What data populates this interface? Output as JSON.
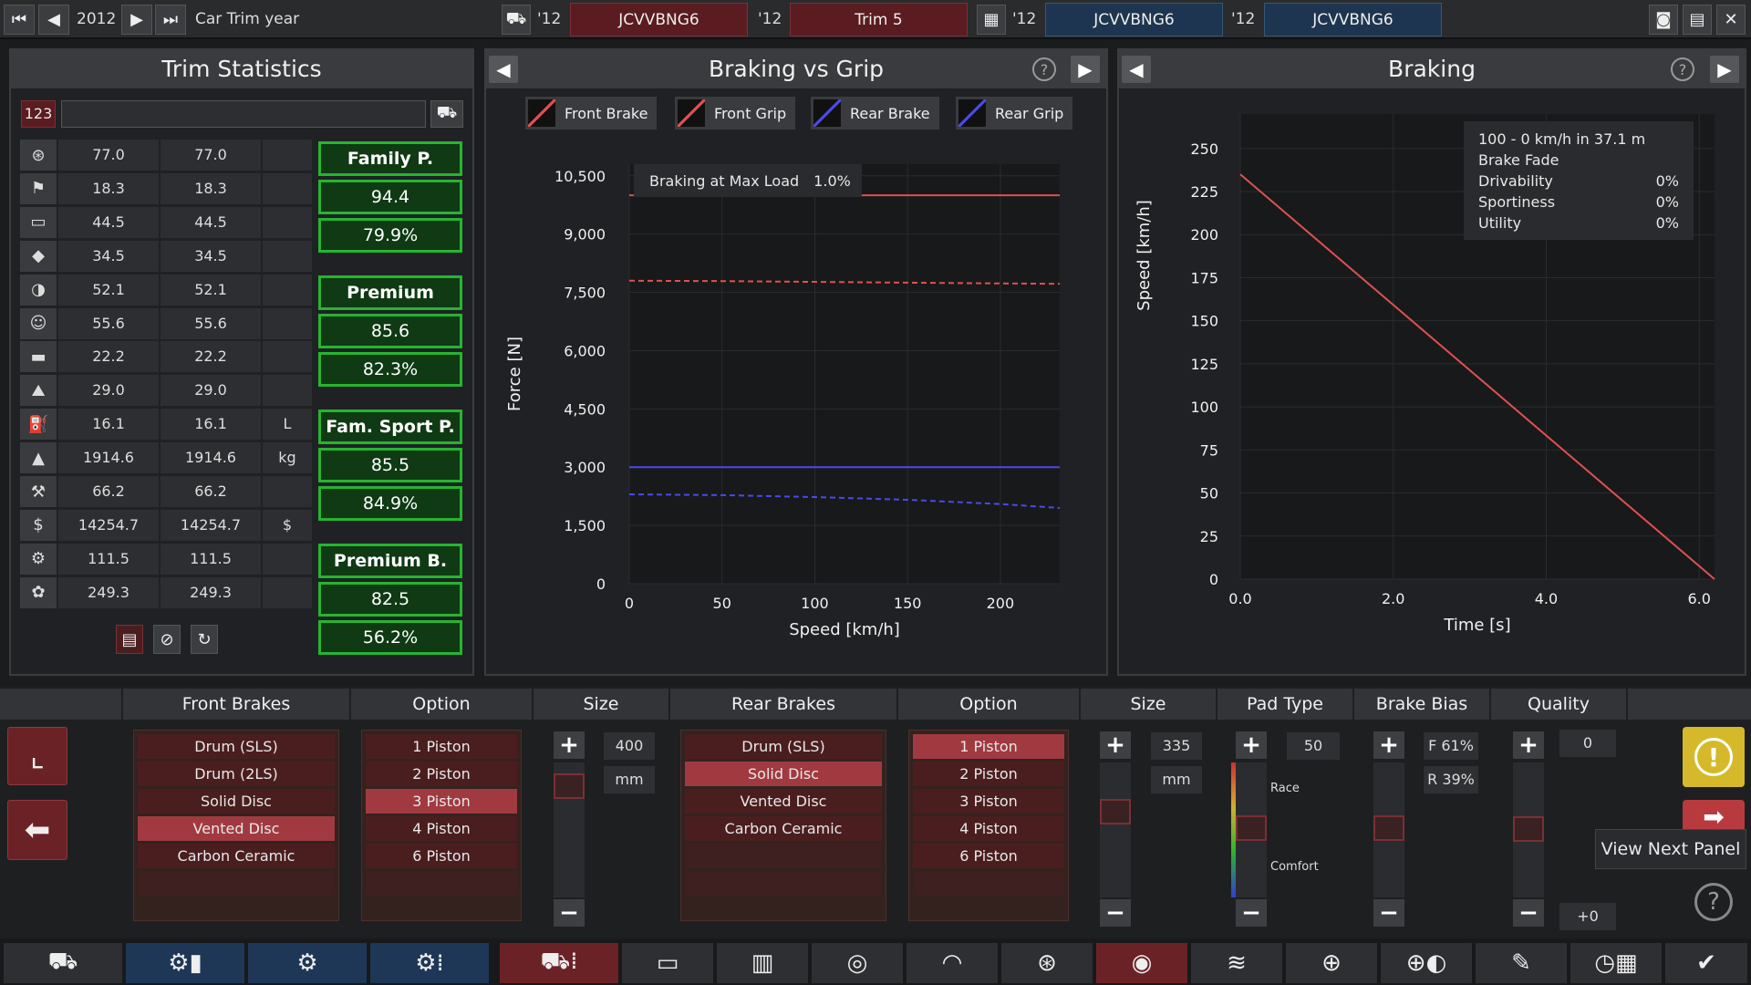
{
  "topbar": {
    "year": "2012",
    "label": "Car Trim year",
    "segments": [
      {
        "year": "'12",
        "name": "JCVVBNG6"
      },
      {
        "year": "'12",
        "name": "Trim 5"
      },
      {
        "year": "'12",
        "name": "JCVVBNG6"
      },
      {
        "year": "'12",
        "name": "JCVVBNG6"
      }
    ]
  },
  "trim_stats": {
    "title": "Trim Statistics",
    "search_badge": "123",
    "search_placeholder": "",
    "rows": [
      {
        "icon": "steering-wheel-icon",
        "v1": "77.0",
        "v2": "77.0",
        "unit": ""
      },
      {
        "icon": "race-flag-icon",
        "v1": "18.3",
        "v2": "18.3",
        "unit": ""
      },
      {
        "icon": "seat-icon",
        "v1": "44.5",
        "v2": "44.5",
        "unit": ""
      },
      {
        "icon": "diamond-icon",
        "v1": "34.5",
        "v2": "34.5",
        "unit": ""
      },
      {
        "icon": "safety-icon",
        "v1": "52.1",
        "v2": "52.1",
        "unit": ""
      },
      {
        "icon": "passengers-icon",
        "v1": "55.6",
        "v2": "55.6",
        "unit": ""
      },
      {
        "icon": "cargo-icon",
        "v1": "22.2",
        "v2": "22.2",
        "unit": ""
      },
      {
        "icon": "offroad-icon",
        "v1": "29.0",
        "v2": "29.0",
        "unit": ""
      },
      {
        "icon": "fuel-icon",
        "v1": "16.1",
        "v2": "16.1",
        "unit": "L"
      },
      {
        "icon": "weight-icon",
        "v1": "1914.6",
        "v2": "1914.6",
        "unit": "kg"
      },
      {
        "icon": "service-icon",
        "v1": "66.2",
        "v2": "66.2",
        "unit": ""
      },
      {
        "icon": "cost-icon",
        "v1": "14254.7",
        "v2": "14254.7",
        "unit": "$"
      },
      {
        "icon": "production-icon",
        "v1": "111.5",
        "v2": "111.5",
        "unit": ""
      },
      {
        "icon": "materials-icon",
        "v1": "249.3",
        "v2": "249.3",
        "unit": ""
      }
    ],
    "demographics": [
      {
        "name": "Family P.",
        "score": "94.4",
        "percent": "79.9%"
      },
      {
        "name": "Premium",
        "score": "85.6",
        "percent": "82.3%"
      },
      {
        "name": "Fam. Sport P.",
        "score": "85.5",
        "percent": "84.9%"
      },
      {
        "name": "Premium B.",
        "score": "82.5",
        "percent": "56.2%"
      }
    ]
  },
  "braking_vs_grip": {
    "title": "Braking vs Grip",
    "legend": [
      "Front Brake",
      "Front Grip",
      "Rear Brake",
      "Rear Grip"
    ],
    "note_label": "Braking at Max Load",
    "note_value": "1.0%",
    "xlabel": "Speed [km/h]",
    "ylabel": "Force [N]"
  },
  "braking": {
    "title": "Braking",
    "summary": "100 - 0 km/h in 37.1 m",
    "fade_label": "Brake Fade",
    "stats": [
      {
        "label": "Drivability",
        "value": "0%"
      },
      {
        "label": "Sportiness",
        "value": "0%"
      },
      {
        "label": "Utility",
        "value": "0%"
      }
    ],
    "xlabel": "Time [s]",
    "ylabel": "Speed [km/h]"
  },
  "chart_data": [
    {
      "type": "line",
      "title": "Braking vs Grip",
      "xlabel": "Speed [km/h]",
      "ylabel": "Force [N]",
      "xlim": [
        0,
        232
      ],
      "ylim": [
        0,
        10800
      ],
      "xticks": [
        0,
        50,
        100,
        150,
        200
      ],
      "yticks": [
        0,
        1500,
        3000,
        4500,
        6000,
        7500,
        9000,
        10500
      ],
      "ytick_labels": [
        "0",
        "1,500",
        "3,000",
        "4,500",
        "6,000",
        "7,500",
        "9,000",
        "10,500"
      ],
      "legend_position": "top",
      "series": [
        {
          "name": "Front Brake",
          "color": "#e05050",
          "dash": false,
          "x": [
            0,
            232
          ],
          "y": [
            10000,
            10000
          ]
        },
        {
          "name": "Front Grip",
          "color": "#e05050",
          "dash": true,
          "x": [
            0,
            50,
            100,
            150,
            200,
            232
          ],
          "y": [
            7800,
            7790,
            7770,
            7750,
            7730,
            7720
          ]
        },
        {
          "name": "Rear Brake",
          "color": "#4a4ae8",
          "dash": false,
          "x": [
            0,
            232
          ],
          "y": [
            3000,
            3000
          ]
        },
        {
          "name": "Rear Grip",
          "color": "#4a4ae8",
          "dash": true,
          "x": [
            0,
            50,
            100,
            150,
            200,
            232
          ],
          "y": [
            2300,
            2280,
            2230,
            2160,
            2050,
            1950
          ]
        }
      ]
    },
    {
      "type": "line",
      "title": "Braking",
      "xlabel": "Time [s]",
      "ylabel": "Speed [km/h]",
      "xlim": [
        0,
        6.2
      ],
      "ylim": [
        0,
        270
      ],
      "xticks": [
        0,
        2,
        4,
        6
      ],
      "xtick_labels": [
        "0.0",
        "2.0",
        "4.0",
        "6.0"
      ],
      "yticks": [
        0,
        25,
        50,
        75,
        100,
        125,
        150,
        175,
        200,
        225,
        250
      ],
      "series": [
        {
          "name": "",
          "color": "#e05050",
          "x": [
            0,
            6.2
          ],
          "y": [
            235,
            0
          ]
        }
      ]
    }
  ],
  "brakes": {
    "front_header": "Front Brakes",
    "option_header": "Option",
    "size_header": "Size",
    "rear_header": "Rear Brakes",
    "pad_header": "Pad Type",
    "bias_header": "Brake Bias",
    "quality_header": "Quality",
    "front_types": [
      "Drum (SLS)",
      "Drum (2LS)",
      "Solid Disc",
      "Vented Disc",
      "Carbon Ceramic"
    ],
    "front_type_selected": 3,
    "front_options": [
      "1 Piston",
      "2 Piston",
      "3 Piston",
      "4 Piston",
      "6 Piston"
    ],
    "front_option_selected": 2,
    "front_size": "400",
    "size_unit": "mm",
    "rear_types": [
      "Drum (SLS)",
      "Solid Disc",
      "Vented Disc",
      "Carbon Ceramic"
    ],
    "rear_type_selected": 1,
    "rear_options": [
      "1 Piston",
      "2 Piston",
      "3 Piston",
      "4 Piston",
      "6 Piston"
    ],
    "rear_option_selected": 0,
    "rear_size": "335",
    "pad_value": "50",
    "pad_race": "Race",
    "pad_comfort": "Comfort",
    "bias_front": "F 61%",
    "bias_rear": "R 39%",
    "quality_value": "0",
    "quality_delta": "+0",
    "tooltip": "View Next Panel"
  },
  "colors": {
    "accent_green": "#25b530",
    "selected_red": "#a13a40",
    "tab_blue": "#1e3756",
    "warning_yellow": "#d6b92a"
  }
}
